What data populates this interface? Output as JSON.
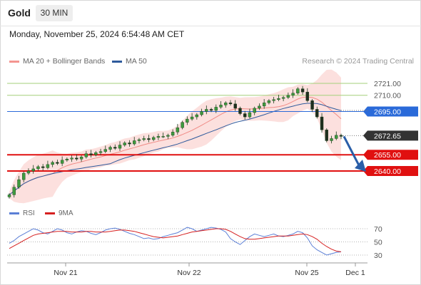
{
  "header": {
    "symbol": "Gold",
    "timeframe": "30 MIN",
    "timestamp": "Monday, November 25, 2024 6:54:48 AM CET"
  },
  "legend": {
    "bollinger_label": "MA 20 + Bollinger Bands",
    "ma50_label": "MA 50",
    "credit": "Research © 2024 Trading Central",
    "colors": {
      "bollinger": "#f49590",
      "ma50": "#2e5a9c"
    }
  },
  "rsi_legend": {
    "rsi_label": "RSI",
    "ma_label": "9MA",
    "colors": {
      "rsi": "#5b7fd6",
      "ma": "#d62020"
    }
  },
  "chart_data": [
    {
      "type": "candlestick",
      "title": "Gold 30 MIN",
      "ylim": [
        2628,
        2732
      ],
      "x_ticks": [
        "Nov 21",
        "Nov 22",
        "Nov 25",
        "Dec 1"
      ],
      "price_series": [
        2618,
        2625,
        2632,
        2638,
        2640,
        2642,
        2644,
        2643,
        2646,
        2648,
        2647,
        2650,
        2651,
        2652,
        2651,
        2653,
        2656,
        2655,
        2657,
        2658,
        2660,
        2662,
        2661,
        2664,
        2666,
        2665,
        2668,
        2669,
        2670,
        2669,
        2671,
        2672,
        2672,
        2673,
        2676,
        2680,
        2685,
        2688,
        2690,
        2692,
        2695,
        2697,
        2696,
        2699,
        2701,
        2703,
        2702,
        2698,
        2693,
        2690,
        2694,
        2698,
        2700,
        2703,
        2705,
        2706,
        2707,
        2708,
        2710,
        2712,
        2716,
        2713,
        2705,
        2697,
        2690,
        2678,
        2668,
        2670,
        2673,
        2672
      ],
      "levels": [
        {
          "value": 2721.0,
          "label": "2721.00",
          "style": "green-thin",
          "color": "#a3cf7a"
        },
        {
          "value": 2710.0,
          "label": "2710.00",
          "style": "green-thin",
          "color": "#a3cf7a"
        },
        {
          "value": 2695.0,
          "label": "2695.00",
          "style": "resistance",
          "color": "#2a6ad9"
        },
        {
          "value": 2672.65,
          "label": "2672.65",
          "style": "current",
          "color": "#333333"
        },
        {
          "value": 2655.0,
          "label": "2655.00",
          "style": "support",
          "color": "#e01010"
        },
        {
          "value": 2640.0,
          "label": "2640.00",
          "style": "support",
          "color": "#e01010"
        }
      ],
      "forecast": {
        "from": 2672,
        "to": 2640,
        "color": "#2a5ea8"
      }
    },
    {
      "type": "line",
      "title": "RSI",
      "ylim": [
        20,
        80
      ],
      "y_ticks": [
        70,
        50,
        30
      ],
      "series": [
        {
          "name": "RSI",
          "values": [
            48,
            52,
            58,
            62,
            66,
            70,
            68,
            64,
            62,
            66,
            70,
            68,
            64,
            62,
            65,
            67,
            66,
            63,
            61,
            64,
            68,
            70,
            71,
            69,
            66,
            63,
            61,
            58,
            55,
            56,
            54,
            55,
            58,
            60,
            62,
            64,
            68,
            72,
            70,
            66,
            68,
            70,
            72,
            71,
            69,
            65,
            55,
            50,
            46,
            52,
            58,
            62,
            60,
            58,
            60,
            62,
            59,
            58,
            60,
            62,
            66,
            64,
            56,
            44,
            38,
            34,
            30,
            32,
            34,
            35
          ]
        },
        {
          "name": "9MA",
          "values": [
            40,
            44,
            48,
            52,
            56,
            60,
            62,
            63,
            64,
            65,
            66,
            66,
            66,
            65,
            65,
            65,
            66,
            66,
            65,
            65,
            65,
            66,
            67,
            68,
            68,
            67,
            66,
            64,
            62,
            60,
            58,
            57,
            56,
            57,
            58,
            59,
            61,
            63,
            65,
            66,
            67,
            68,
            69,
            70,
            70,
            69,
            66,
            62,
            58,
            55,
            54,
            54,
            55,
            56,
            57,
            58,
            59,
            59,
            59,
            60,
            61,
            62,
            61,
            58,
            54,
            48,
            43,
            39,
            36,
            35
          ]
        }
      ]
    }
  ]
}
